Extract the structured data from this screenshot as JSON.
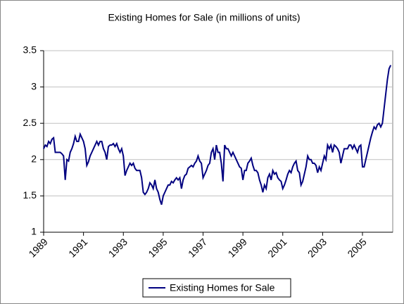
{
  "chart_data": {
    "type": "line",
    "title": "Existing Homes for Sale (in millions of units)",
    "categories": [
      "1989",
      null,
      null,
      null,
      null,
      null,
      null,
      null,
      null,
      null,
      null,
      null,
      null,
      null,
      null,
      null,
      null,
      null,
      null,
      null,
      null,
      null,
      null,
      null,
      "1991",
      null,
      null,
      null,
      null,
      null,
      null,
      null,
      null,
      null,
      null,
      null,
      null,
      null,
      null,
      null,
      null,
      null,
      null,
      null,
      null,
      null,
      null,
      null,
      "1993",
      null,
      null,
      null,
      null,
      null,
      null,
      null,
      null,
      null,
      null,
      null,
      null,
      null,
      null,
      null,
      null,
      null,
      null,
      null,
      null,
      null,
      null,
      null,
      "1995",
      null,
      null,
      null,
      null,
      null,
      null,
      null,
      null,
      null,
      null,
      null,
      null,
      null,
      null,
      null,
      null,
      null,
      null,
      null,
      null,
      null,
      null,
      null,
      "1997",
      null,
      null,
      null,
      null,
      null,
      null,
      null,
      null,
      null,
      null,
      null,
      null,
      null,
      null,
      null,
      null,
      null,
      null,
      null,
      null,
      null,
      null,
      null,
      "1999",
      null,
      null,
      null,
      null,
      null,
      null,
      null,
      null,
      null,
      null,
      null,
      null,
      null,
      null,
      null,
      null,
      null,
      null,
      null,
      null,
      null,
      null,
      null,
      "2001",
      null,
      null,
      null,
      null,
      null,
      null,
      null,
      null,
      null,
      null,
      null,
      null,
      null,
      null,
      null,
      null,
      null,
      null,
      null,
      null,
      null,
      null,
      null,
      "2003",
      null,
      null,
      null,
      null,
      null,
      null,
      null,
      null,
      null,
      null,
      null,
      null,
      null,
      null,
      null,
      null,
      null,
      null,
      null,
      null,
      null,
      null,
      null,
      "2005",
      null,
      null,
      null,
      null,
      null,
      null,
      null,
      null,
      null,
      null,
      null,
      null,
      null,
      null,
      null,
      null,
      null
    ],
    "series": [
      {
        "name": "Existing Homes for Sale",
        "color": "#000080",
        "values": [
          2.15,
          2.2,
          2.18,
          2.25,
          2.22,
          2.28,
          2.3,
          2.1,
          2.1,
          2.1,
          2.1,
          2.08,
          2.05,
          1.72,
          2.0,
          1.98,
          2.1,
          2.15,
          2.22,
          2.32,
          2.25,
          2.25,
          2.35,
          2.3,
          2.25,
          2.15,
          1.92,
          1.97,
          2.05,
          2.1,
          2.15,
          2.2,
          2.25,
          2.2,
          2.25,
          2.25,
          2.15,
          2.1,
          2.0,
          2.18,
          2.2,
          2.2,
          2.22,
          2.18,
          2.22,
          2.15,
          2.1,
          2.15,
          2.05,
          1.78,
          1.85,
          1.9,
          1.95,
          1.92,
          1.95,
          1.88,
          1.85,
          1.85,
          1.85,
          1.75,
          1.55,
          1.52,
          1.55,
          1.6,
          1.68,
          1.65,
          1.6,
          1.72,
          1.6,
          1.55,
          1.45,
          1.38,
          1.5,
          1.55,
          1.6,
          1.65,
          1.65,
          1.7,
          1.68,
          1.72,
          1.75,
          1.72,
          1.75,
          1.6,
          1.72,
          1.78,
          1.8,
          1.88,
          1.9,
          1.92,
          1.9,
          1.95,
          1.98,
          2.05,
          1.98,
          1.95,
          1.75,
          1.8,
          1.85,
          1.92,
          1.95,
          2.1,
          2.15,
          2.0,
          2.2,
          2.1,
          2.1,
          1.95,
          1.7,
          2.2,
          2.15,
          2.15,
          2.1,
          2.05,
          2.1,
          2.05,
          2.0,
          1.95,
          1.9,
          1.88,
          1.72,
          1.85,
          1.85,
          1.95,
          1.98,
          2.02,
          1.92,
          1.85,
          1.85,
          1.82,
          1.72,
          1.65,
          1.55,
          1.65,
          1.6,
          1.75,
          1.8,
          1.72,
          1.85,
          1.8,
          1.82,
          1.75,
          1.72,
          1.7,
          1.6,
          1.65,
          1.72,
          1.8,
          1.85,
          1.82,
          1.9,
          1.95,
          1.98,
          1.85,
          1.82,
          1.65,
          1.7,
          1.8,
          1.9,
          2.05,
          2.0,
          2.0,
          1.95,
          1.95,
          1.92,
          1.82,
          1.9,
          1.85,
          1.95,
          2.05,
          2.0,
          2.2,
          2.15,
          2.2,
          2.1,
          2.2,
          2.18,
          2.15,
          2.1,
          1.95,
          2.05,
          2.15,
          2.15,
          2.15,
          2.2,
          2.2,
          2.15,
          2.2,
          2.15,
          2.1,
          2.18,
          2.2,
          1.9,
          1.9,
          2.0,
          2.1,
          2.2,
          2.3,
          2.38,
          2.45,
          2.42,
          2.48,
          2.5,
          2.45,
          2.5,
          2.7,
          2.9,
          3.1,
          3.25,
          3.3
        ]
      }
    ],
    "ylim": [
      1,
      3.5
    ],
    "yticks": [
      1,
      1.5,
      2,
      2.5,
      3,
      3.5
    ],
    "grid": true,
    "legend": "bottom"
  }
}
